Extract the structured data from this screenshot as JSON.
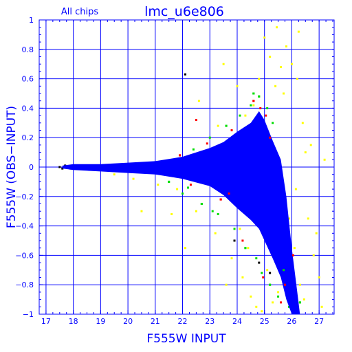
{
  "chart_data": {
    "type": "scatter",
    "title_left": "All chips",
    "title_right": "lmc_u6e806",
    "xlabel": "F555W INPUT",
    "ylabel": "F555W (OBS−INPUT)",
    "xlim": [
      16.75,
      27.55
    ],
    "ylim": [
      -1.0,
      1.0
    ],
    "x_ticks": [
      17,
      18,
      19,
      20,
      21,
      22,
      23,
      24,
      25,
      26,
      27
    ],
    "y_ticks": [
      -1,
      -0.8,
      -0.6,
      -0.4,
      -0.2,
      0,
      0.2,
      0.4,
      0.6,
      0.8,
      1
    ],
    "x_tick_labels": [
      "17",
      "18",
      "19",
      "20",
      "21",
      "22",
      "23",
      "24",
      "25",
      "26",
      "27"
    ],
    "y_tick_labels": [
      "−1",
      "−0.8",
      "−0.6",
      "−0.4",
      "−0.2",
      "0",
      "0.2",
      "0.4",
      "0.6",
      "0.8",
      "1"
    ],
    "grid": true,
    "colors": {
      "axes": "#0000ff",
      "grid": "#0000ff",
      "text": "#0000ff",
      "background": "#ffffff"
    },
    "series": [
      {
        "color": "#ffff00",
        "points": [
          [
            18.3,
            0.01
          ],
          [
            19.5,
            -0.05
          ],
          [
            20.2,
            -0.08
          ],
          [
            21.1,
            -0.12
          ],
          [
            21.8,
            -0.15
          ],
          [
            22.1,
            -0.55
          ],
          [
            22.5,
            -0.3
          ],
          [
            22.8,
            0.1
          ],
          [
            23.2,
            -0.45
          ],
          [
            23.3,
            0.28
          ],
          [
            23.5,
            0.7
          ],
          [
            23.8,
            -0.62
          ],
          [
            24.0,
            0.55
          ],
          [
            24.2,
            -0.75
          ],
          [
            24.3,
            0.35
          ],
          [
            24.5,
            -0.88
          ],
          [
            24.6,
            0.42
          ],
          [
            24.7,
            -0.95
          ],
          [
            24.8,
            0.6
          ],
          [
            24.9,
            -0.98
          ],
          [
            25.0,
            0.88
          ],
          [
            25.1,
            -0.7
          ],
          [
            25.2,
            0.75
          ],
          [
            25.3,
            -0.92
          ],
          [
            25.4,
            0.55
          ],
          [
            25.5,
            -0.85
          ],
          [
            25.6,
            0.68
          ],
          [
            25.7,
            0.5
          ],
          [
            25.8,
            0.82
          ],
          [
            25.9,
            -0.35
          ],
          [
            26.0,
            0.7
          ],
          [
            26.1,
            -0.55
          ],
          [
            26.2,
            0.6
          ],
          [
            26.3,
            -0.8
          ],
          [
            26.4,
            0.3
          ],
          [
            26.5,
            0.1
          ],
          [
            26.6,
            -0.35
          ],
          [
            26.7,
            0.15
          ],
          [
            26.8,
            -0.6
          ],
          [
            26.9,
            -0.45
          ],
          [
            27.0,
            -0.75
          ],
          [
            27.1,
            -0.95
          ],
          [
            23.6,
            -0.8
          ],
          [
            24.1,
            -0.42
          ],
          [
            22.6,
            0.45
          ],
          [
            25.45,
            0.95
          ],
          [
            26.25,
            0.92
          ],
          [
            27.2,
            0.05
          ],
          [
            21.6,
            -0.32
          ],
          [
            20.5,
            -0.3
          ],
          [
            24.4,
            -0.55
          ],
          [
            25.75,
            -0.6
          ],
          [
            26.45,
            -0.9
          ],
          [
            26.15,
            -0.15
          ],
          [
            24.95,
            0.18
          ],
          [
            25.25,
            -0.3
          ]
        ]
      },
      {
        "color": "#00dd00",
        "points": [
          [
            21.5,
            -0.1
          ],
          [
            22.0,
            -0.18
          ],
          [
            22.4,
            0.12
          ],
          [
            22.7,
            -0.25
          ],
          [
            23.0,
            0.2
          ],
          [
            23.3,
            -0.32
          ],
          [
            23.6,
            0.28
          ],
          [
            23.9,
            -0.42
          ],
          [
            24.1,
            0.35
          ],
          [
            24.3,
            -0.55
          ],
          [
            24.5,
            0.42
          ],
          [
            24.7,
            -0.62
          ],
          [
            24.8,
            0.48
          ],
          [
            24.9,
            -0.72
          ],
          [
            25.1,
            0.4
          ],
          [
            25.2,
            -0.8
          ],
          [
            25.3,
            0.3
          ],
          [
            25.5,
            -0.88
          ],
          [
            25.7,
            -0.7
          ],
          [
            25.9,
            -0.95
          ],
          [
            26.1,
            -0.85
          ],
          [
            26.3,
            -0.92
          ],
          [
            23.1,
            -0.3
          ],
          [
            22.2,
            -0.14
          ],
          [
            24.6,
            0.5
          ]
        ]
      },
      {
        "color": "#ff0000",
        "points": [
          [
            21.9,
            0.08
          ],
          [
            22.3,
            -0.12
          ],
          [
            22.9,
            0.16
          ],
          [
            23.4,
            -0.22
          ],
          [
            23.8,
            0.25
          ],
          [
            24.2,
            -0.5
          ],
          [
            24.6,
            0.45
          ],
          [
            24.85,
            0.4
          ],
          [
            25.05,
            0.35
          ],
          [
            25.2,
            0.2
          ],
          [
            25.35,
            -0.45
          ],
          [
            25.55,
            -0.65
          ],
          [
            25.75,
            -0.8
          ],
          [
            25.95,
            -0.9
          ],
          [
            26.15,
            -0.98
          ],
          [
            23.7,
            -0.18
          ],
          [
            24.95,
            -0.75
          ],
          [
            22.5,
            0.32
          ],
          [
            26.05,
            -0.6
          ],
          [
            25.6,
            -0.92
          ]
        ]
      },
      {
        "color": "#000000",
        "points": [
          [
            17.5,
            0.0
          ],
          [
            17.6,
            -0.01
          ],
          [
            17.7,
            0.01
          ],
          [
            17.8,
            0.0
          ],
          [
            17.9,
            -0.01
          ],
          [
            18.0,
            0.01
          ],
          [
            18.1,
            0.0
          ],
          [
            21.6,
            0.02
          ],
          [
            22.4,
            -0.07
          ],
          [
            22.1,
            0.63
          ],
          [
            23.9,
            -0.5
          ],
          [
            24.4,
            0.2
          ],
          [
            24.8,
            -0.65
          ],
          [
            25.2,
            -0.72
          ],
          [
            25.8,
            -0.85
          ],
          [
            26.0,
            -0.95
          ],
          [
            20.8,
            -0.02
          ],
          [
            23.3,
            0.1
          ]
        ]
      }
    ],
    "density_band": {
      "color": "#0000ff",
      "x": [
        17.6,
        18,
        19,
        20,
        21,
        22,
        23,
        23.5,
        24,
        24.5,
        24.8,
        25.0,
        25.3,
        25.6,
        25.8,
        26.0,
        26.2,
        26.3
      ],
      "upper": [
        0.01,
        0.02,
        0.02,
        0.03,
        0.04,
        0.07,
        0.13,
        0.17,
        0.24,
        0.3,
        0.38,
        0.32,
        0.18,
        0.05,
        -0.2,
        -0.55,
        -0.85,
        -1.0
      ],
      "lower": [
        -0.01,
        -0.02,
        -0.03,
        -0.04,
        -0.05,
        -0.08,
        -0.13,
        -0.19,
        -0.28,
        -0.36,
        -0.42,
        -0.5,
        -0.62,
        -0.75,
        -0.9,
        -1.0,
        -1.0,
        -1.0
      ]
    }
  }
}
